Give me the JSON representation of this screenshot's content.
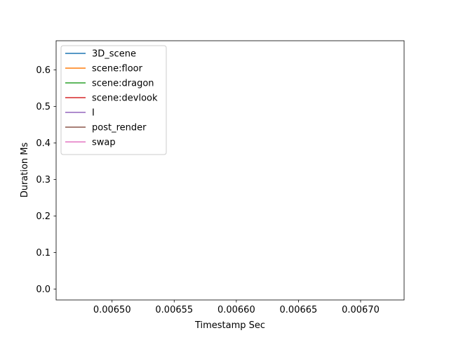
{
  "chart_data": {
    "type": "line",
    "title": "",
    "xlabel": "Timestamp Sec",
    "ylabel": "Duration Ms",
    "xlim": [
      0.006455,
      0.006735
    ],
    "ylim": [
      -0.03,
      0.68
    ],
    "x_ticks": [
      0.0065,
      0.00655,
      0.0066,
      0.00665,
      0.0067
    ],
    "x_tick_labels": [
      "0.00650",
      "0.00655",
      "0.00660",
      "0.00665",
      "0.00670"
    ],
    "y_ticks": [
      0.0,
      0.1,
      0.2,
      0.3,
      0.4,
      0.5,
      0.6
    ],
    "y_tick_labels": [
      "0.0",
      "0.1",
      "0.2",
      "0.3",
      "0.4",
      "0.5",
      "0.6"
    ],
    "grid": false,
    "legend_position": "upper-left",
    "series": [
      {
        "name": "3D_scene",
        "color": "#1f77b4",
        "x": [],
        "y": []
      },
      {
        "name": "scene:floor",
        "color": "#ff7f0e",
        "x": [],
        "y": []
      },
      {
        "name": "scene:dragon",
        "color": "#2ca02c",
        "x": [],
        "y": []
      },
      {
        "name": "scene:devlook",
        "color": "#d62728",
        "x": [],
        "y": []
      },
      {
        "name": "I",
        "color": "#9467bd",
        "x": [],
        "y": []
      },
      {
        "name": "post_render",
        "color": "#8c564b",
        "x": [],
        "y": []
      },
      {
        "name": "swap",
        "color": "#e377c2",
        "x": [],
        "y": []
      }
    ]
  }
}
